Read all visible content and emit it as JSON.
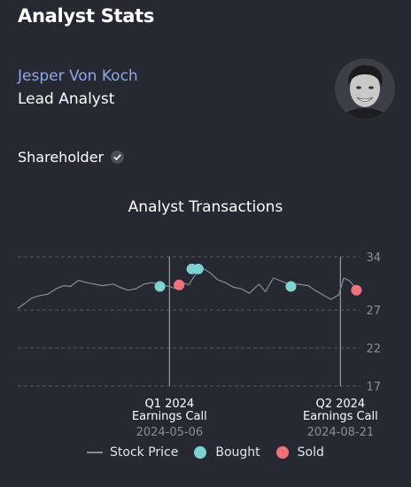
{
  "header": {
    "title": "Analyst Stats"
  },
  "analyst": {
    "name": "Jesper Von Koch",
    "role": "Lead Analyst",
    "shareholder_label": "Shareholder"
  },
  "chart_title": "Analyst Transactions",
  "colors": {
    "background": "#272932",
    "name_link": "#8fa8e8",
    "bought": "#7dd3cf",
    "sold": "#f0727c",
    "price_line": "#8a8d94",
    "grid": "#555862"
  },
  "icons": {
    "shareholder_badge": "check-icon"
  },
  "legend": {
    "price": "Stock Price",
    "bought": "Bought",
    "sold": "Sold"
  },
  "chart_data": {
    "type": "line",
    "title": "Analyst Transactions",
    "y_ticks": [
      34,
      27,
      22,
      17
    ],
    "ylim": [
      17,
      34
    ],
    "grid": "horizontal-dashed",
    "legend_position": "bottom",
    "x_range": [
      "2024-02-01",
      "2024-09-02"
    ],
    "price_series": {
      "name": "Stock Price",
      "x": [
        "2024-02-01",
        "2024-02-05",
        "2024-02-10",
        "2024-02-15",
        "2024-02-20",
        "2024-02-25",
        "2024-03-01",
        "2024-03-05",
        "2024-03-10",
        "2024-03-15",
        "2024-03-20",
        "2024-03-25",
        "2024-04-01",
        "2024-04-05",
        "2024-04-10",
        "2024-04-15",
        "2024-04-20",
        "2024-04-25",
        "2024-05-01",
        "2024-05-06",
        "2024-05-10",
        "2024-05-14",
        "2024-05-18",
        "2024-05-22",
        "2024-05-27",
        "2024-06-01",
        "2024-06-05",
        "2024-06-10",
        "2024-06-15",
        "2024-06-20",
        "2024-06-25",
        "2024-07-01",
        "2024-07-05",
        "2024-07-10",
        "2024-07-15",
        "2024-07-20",
        "2024-07-25",
        "2024-08-01",
        "2024-08-05",
        "2024-08-10",
        "2024-08-15",
        "2024-08-20",
        "2024-08-23",
        "2024-08-27",
        "2024-09-01"
      ],
      "y": [
        27.2,
        27.8,
        28.6,
        28.9,
        29.1,
        29.8,
        30.2,
        30.1,
        30.9,
        30.6,
        30.4,
        30.2,
        30.4,
        30.0,
        29.6,
        29.8,
        30.4,
        30.6,
        30.3,
        30.1,
        29.8,
        30.6,
        30.3,
        31.6,
        32.5,
        31.8,
        31.0,
        30.6,
        30.0,
        29.8,
        29.2,
        30.4,
        29.4,
        31.2,
        30.8,
        30.4,
        30.4,
        30.2,
        29.6,
        29.0,
        28.4,
        29.0,
        31.2,
        30.8,
        29.4
      ]
    },
    "transactions": [
      {
        "date": "2024-04-30",
        "price": 30.1,
        "type": "bought"
      },
      {
        "date": "2024-05-12",
        "price": 30.3,
        "type": "sold"
      },
      {
        "date": "2024-05-20",
        "price": 32.4,
        "type": "bought"
      },
      {
        "date": "2024-05-24",
        "price": 32.4,
        "type": "bought"
      },
      {
        "date": "2024-07-21",
        "price": 30.1,
        "type": "bought"
      },
      {
        "date": "2024-08-31",
        "price": 29.6,
        "type": "sold"
      }
    ],
    "events": [
      {
        "date": "2024-05-06",
        "label1": "Q1 2024",
        "label2": "Earnings Call",
        "date_label": "2024-05-06"
      },
      {
        "date": "2024-08-21",
        "label1": "Q2 2024",
        "label2": "Earnings Call",
        "date_label": "2024-08-21"
      }
    ]
  }
}
